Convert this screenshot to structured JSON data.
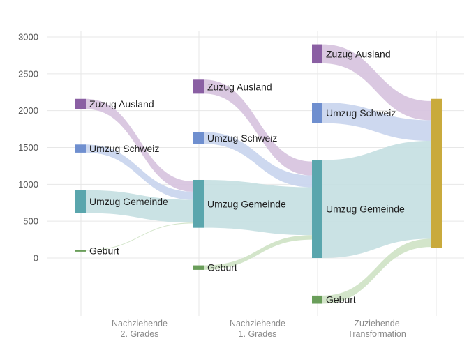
{
  "chart_data": {
    "type": "sankey",
    "y_ticks": [
      0,
      500,
      1000,
      1500,
      2000,
      2500,
      3000
    ],
    "ylim": [
      -600,
      3150
    ],
    "colors": {
      "ausland": "#8a5fa3",
      "schweiz": "#6f8fcf",
      "gemeinde": "#5aa6ad",
      "geburt": "#6a9e5a",
      "total": "#c9aa3c",
      "flow_ausland": "#d7c3de",
      "flow_schweiz": "#c9d5ee",
      "flow_gemeinde": "#c6e0e2",
      "flow_geburt": "#cfe3c6"
    },
    "columns": [
      {
        "label_line1": "Nachziehende",
        "label_line2": "2. Grades",
        "nodes": [
          {
            "key": "ausland",
            "label": "Zuzug Ausland",
            "y0": 2020,
            "y1": 2160
          },
          {
            "key": "schweiz",
            "label": "Umzug Schweiz",
            "y0": 1430,
            "y1": 1540
          },
          {
            "key": "gemeinde",
            "label": "Umzug Gemeinde",
            "y0": 610,
            "y1": 920
          },
          {
            "key": "geburt",
            "label": "Geburt",
            "y0": 100,
            "y1": 110
          }
        ]
      },
      {
        "label_line1": "Nachziehende",
        "label_line2": "1. Grades",
        "nodes": [
          {
            "key": "ausland",
            "label": "Zuzug Ausland",
            "y0": 2230,
            "y1": 2420
          },
          {
            "key": "schweiz",
            "label": "Umzug Schweiz",
            "y0": 1550,
            "y1": 1710
          },
          {
            "key": "gemeinde",
            "label": "Umzug Gemeinde",
            "y0": 410,
            "y1": 1060
          },
          {
            "key": "geburt",
            "label": "Geburt",
            "y0": -160,
            "y1": -100
          }
        ]
      },
      {
        "label_line1": "Zuziehende",
        "label_line2": "Transformation",
        "nodes": [
          {
            "key": "ausland",
            "label": "Zuzug Ausland",
            "y0": 2640,
            "y1": 2900
          },
          {
            "key": "schweiz",
            "label": "Umzug Schweiz",
            "y0": 1830,
            "y1": 2110
          },
          {
            "key": "gemeinde",
            "label": "Umzug Gemeinde",
            "y0": 0,
            "y1": 1330
          },
          {
            "key": "geburt",
            "label": "Geburt",
            "y0": -620,
            "y1": -510
          }
        ]
      }
    ],
    "total": {
      "y0": 140,
      "y1": 2160
    },
    "flows": [
      {
        "from_col": 0,
        "key": "ausland",
        "src": [
          2020,
          2160
        ],
        "dst": [
          900,
          1040
        ]
      },
      {
        "from_col": 0,
        "key": "schweiz",
        "src": [
          1430,
          1540
        ],
        "dst": [
          790,
          900
        ]
      },
      {
        "from_col": 0,
        "key": "gemeinde",
        "src": [
          610,
          920
        ],
        "dst": [
          480,
          790
        ]
      },
      {
        "from_col": 0,
        "key": "geburt",
        "src": [
          100,
          110
        ],
        "dst": [
          470,
          480
        ]
      },
      {
        "from_col": 1,
        "key": "ausland",
        "src": [
          2230,
          2420
        ],
        "dst": [
          1120,
          1310
        ]
      },
      {
        "from_col": 1,
        "key": "schweiz",
        "src": [
          1550,
          1710
        ],
        "dst": [
          960,
          1120
        ]
      },
      {
        "from_col": 1,
        "key": "gemeinde",
        "src": [
          410,
          1060
        ],
        "dst": [
          310,
          960
        ]
      },
      {
        "from_col": 1,
        "key": "geburt",
        "src": [
          -160,
          -100
        ],
        "dst": [
          250,
          310
        ]
      },
      {
        "from_col": 2,
        "key": "ausland",
        "src": [
          2640,
          2900
        ],
        "dst": [
          1870,
          2130
        ]
      },
      {
        "from_col": 2,
        "key": "schweiz",
        "src": [
          1830,
          2110
        ],
        "dst": [
          1590,
          1870
        ]
      },
      {
        "from_col": 2,
        "key": "gemeinde",
        "src": [
          0,
          1330
        ],
        "dst": [
          260,
          1590
        ]
      },
      {
        "from_col": 2,
        "key": "geburt",
        "src": [
          -620,
          -510
        ],
        "dst": [
          150,
          260
        ]
      }
    ]
  }
}
